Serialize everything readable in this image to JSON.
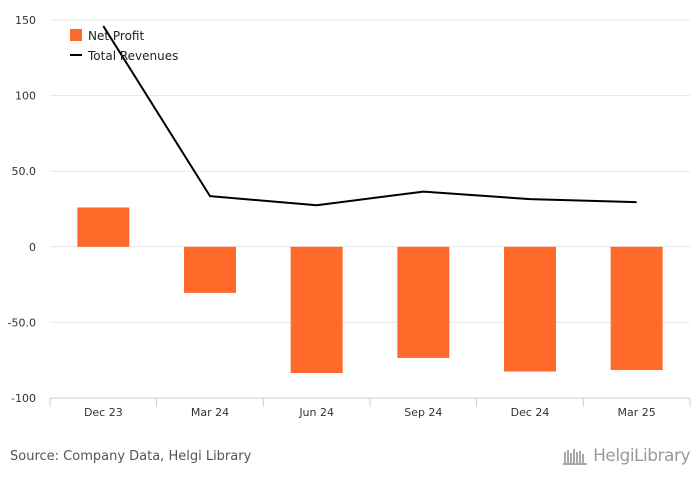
{
  "chart_data": {
    "type": "bar",
    "categories": [
      "Dec 23",
      "Mar 24",
      "Jun 24",
      "Sep 24",
      "Dec 24",
      "Mar 25"
    ],
    "series": [
      {
        "name": "Net Profit",
        "type": "bar",
        "color": "#ff6a2a",
        "values": [
          26,
          -30.5,
          -83.5,
          -73.5,
          -82.5,
          -81.5
        ]
      },
      {
        "name": "Total Revenues",
        "type": "line",
        "color": "#000000",
        "values": [
          146,
          33.5,
          27.5,
          36.5,
          31.5,
          29.5
        ]
      }
    ],
    "yticks": [
      "150",
      "100",
      "50.0",
      "0",
      "-50.0",
      "-100"
    ],
    "ytick_values": [
      150,
      100,
      50,
      0,
      -50,
      -100
    ],
    "ylim": [
      -100,
      150
    ],
    "grid": true,
    "legend_position": "top-left",
    "title": "",
    "xlabel": "",
    "ylabel": ""
  },
  "footer": {
    "source": "Source: Company Data, Helgi Library",
    "logo_text": "HelgiLibrary",
    "logo_icon": "helgi-library-logo-icon"
  }
}
